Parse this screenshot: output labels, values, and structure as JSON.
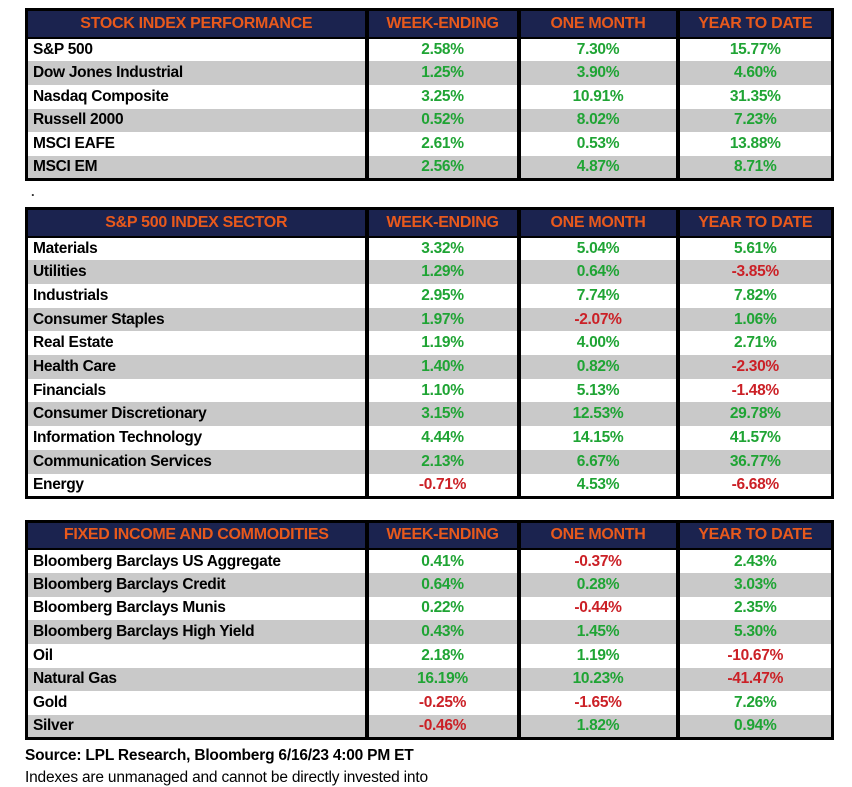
{
  "colors": {
    "header_bg": "#1B234F",
    "header_text": "#E8591C",
    "positive": "#1FA434",
    "negative": "#CB2026",
    "stripe": "#C9C9C9",
    "border": "#000000",
    "label_text": "#000000"
  },
  "columns": [
    "WEEK-ENDING",
    "ONE MONTH",
    "YEAR TO DATE"
  ],
  "tables": [
    {
      "title": "STOCK INDEX PERFORMANCE",
      "rows": [
        {
          "label": "S&P 500",
          "values": [
            "2.58%",
            "7.30%",
            "15.77%"
          ]
        },
        {
          "label": "Dow Jones Industrial",
          "values": [
            "1.25%",
            "3.90%",
            "4.60%"
          ]
        },
        {
          "label": "Nasdaq Composite",
          "values": [
            "3.25%",
            "10.91%",
            "31.35%"
          ]
        },
        {
          "label": "Russell 2000",
          "values": [
            "0.52%",
            "8.02%",
            "7.23%"
          ]
        },
        {
          "label": "MSCI EAFE",
          "values": [
            "2.61%",
            "0.53%",
            "13.88%"
          ]
        },
        {
          "label": "MSCI EM",
          "values": [
            "2.56%",
            "4.87%",
            "8.71%"
          ]
        }
      ]
    },
    {
      "title": "S&P 500 INDEX SECTOR",
      "rows": [
        {
          "label": "Materials",
          "values": [
            "3.32%",
            "5.04%",
            "5.61%"
          ]
        },
        {
          "label": "Utilities",
          "values": [
            "1.29%",
            "0.64%",
            "-3.85%"
          ]
        },
        {
          "label": "Industrials",
          "values": [
            "2.95%",
            "7.74%",
            "7.82%"
          ]
        },
        {
          "label": "Consumer Staples",
          "values": [
            "1.97%",
            "-2.07%",
            "1.06%"
          ]
        },
        {
          "label": "Real Estate",
          "values": [
            "1.19%",
            "4.00%",
            "2.71%"
          ]
        },
        {
          "label": "Health Care",
          "values": [
            "1.40%",
            "0.82%",
            "-2.30%"
          ]
        },
        {
          "label": "Financials",
          "values": [
            "1.10%",
            "5.13%",
            "-1.48%"
          ]
        },
        {
          "label": "Consumer Discretionary",
          "values": [
            "3.15%",
            "12.53%",
            "29.78%"
          ]
        },
        {
          "label": "Information Technology",
          "values": [
            "4.44%",
            "14.15%",
            "41.57%"
          ]
        },
        {
          "label": "Communication Services",
          "values": [
            "2.13%",
            "6.67%",
            "36.77%"
          ]
        },
        {
          "label": "Energy",
          "values": [
            "-0.71%",
            "4.53%",
            "-6.68%"
          ]
        }
      ]
    },
    {
      "title": "FIXED INCOME AND COMMODITIES",
      "rows": [
        {
          "label": "Bloomberg Barclays US Aggregate",
          "values": [
            "0.41%",
            "-0.37%",
            "2.43%"
          ]
        },
        {
          "label": "Bloomberg Barclays Credit",
          "values": [
            "0.64%",
            "0.28%",
            "3.03%"
          ]
        },
        {
          "label": "Bloomberg Barclays Munis",
          "values": [
            "0.22%",
            "-0.44%",
            "2.35%"
          ]
        },
        {
          "label": "Bloomberg Barclays High Yield",
          "values": [
            "0.43%",
            "1.45%",
            "5.30%"
          ]
        },
        {
          "label": "Oil",
          "values": [
            "2.18%",
            "1.19%",
            "-10.67%"
          ]
        },
        {
          "label": "Natural Gas",
          "values": [
            "16.19%",
            "10.23%",
            "-41.47%"
          ]
        },
        {
          "label": "Gold",
          "values": [
            "-0.25%",
            "-1.65%",
            "7.26%"
          ]
        },
        {
          "label": "Silver",
          "values": [
            "-0.46%",
            "1.82%",
            "0.94%"
          ]
        }
      ]
    }
  ],
  "separator_dot": ".",
  "footer": {
    "source": "Source: LPL Research, Bloomberg 6/16/23 4:00 PM ET",
    "disclaimer": "Indexes are unmanaged and cannot be directly invested into"
  }
}
